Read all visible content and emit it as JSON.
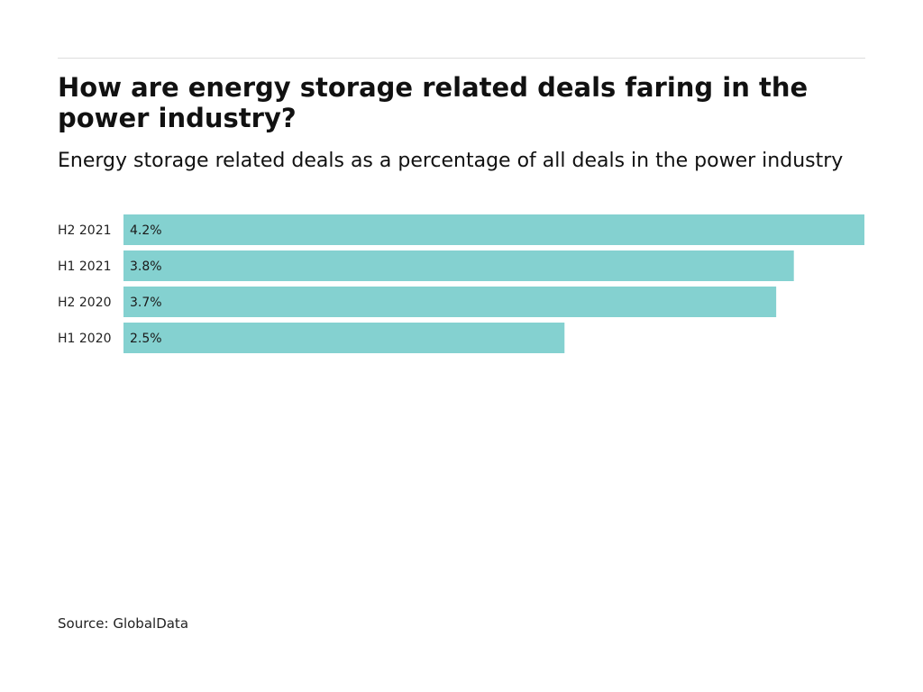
{
  "chart_data": {
    "type": "bar",
    "orientation": "horizontal",
    "title": "How are energy storage related deals faring in the power industry?",
    "subtitle": "Energy storage related deals as a percentage of all deals in the power industry",
    "categories": [
      "H2 2021",
      "H1 2021",
      "H2 2020",
      "H1 2020"
    ],
    "values": [
      4.2,
      3.8,
      3.7,
      2.5
    ],
    "value_labels": [
      "4.2%",
      "3.8%",
      "3.7%",
      "2.5%"
    ],
    "unit": "%",
    "xlim": [
      0,
      4.2
    ],
    "grid": false,
    "legend": "none",
    "bar_color": "#84d1d0",
    "source": "Source: GlobalData"
  }
}
